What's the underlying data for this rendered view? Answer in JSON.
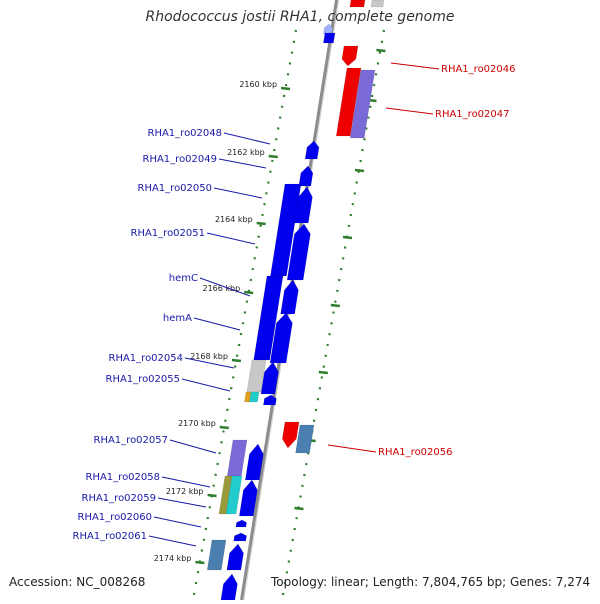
{
  "title": "Rhodococcus jostii RHA1, complete genome",
  "accession": "Accession: NC_008268",
  "summary": "Topology: linear; Length: 7,804,765 bp; Genes: 7,274",
  "colors": {
    "blue": "#0000ee",
    "red": "#ee0000",
    "purple": "#7a6ad8",
    "slate": "#4a7fb0",
    "grey": "#c8c8c8",
    "olive": "#9a9a3c",
    "cyan": "#22cccc",
    "orange": "#e0a020",
    "axis": "#8c8c8c",
    "tick": "#2e7d2e",
    "blue_label": "#1a1aa8",
    "red_label": "#cc0000"
  },
  "kbp_ticks": [
    "2160 kbp",
    "2162 kbp",
    "2164 kbp",
    "2166 kbp",
    "2168 kbp",
    "2170 kbp",
    "2172 kbp",
    "2174 kbp"
  ],
  "gene_labels_left": [
    "RHA1_ro02048",
    "RHA1_ro02049",
    "RHA1_ro02050",
    "RHA1_ro02051",
    "hemC",
    "hemA",
    "RHA1_ro02054",
    "RHA1_ro02055",
    "RHA1_ro02057",
    "RHA1_ro02058",
    "RHA1_ro02059",
    "RHA1_ro02060",
    "RHA1_ro02061"
  ],
  "gene_labels_right": [
    "RHA1_ro02046",
    "RHA1_ro02047",
    "RHA1_ro02056"
  ]
}
